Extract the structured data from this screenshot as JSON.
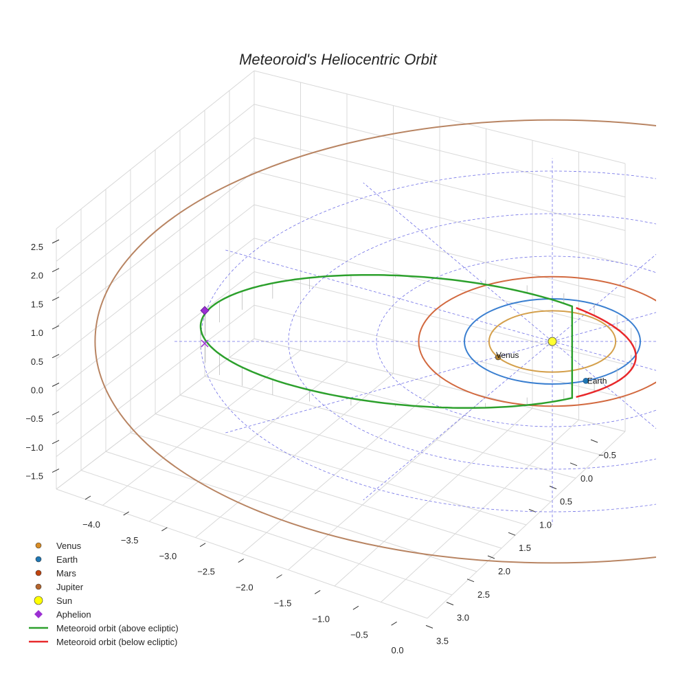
{
  "chart_data": {
    "type": "3d-orbit",
    "title": "Meteoroid's Heliocentric Orbit",
    "x_ticks": [
      "−4.0",
      "−3.5",
      "−3.0",
      "−2.5",
      "−2.0",
      "−1.5",
      "−1.0",
      "−0.5",
      "0.0"
    ],
    "y_ticks": [
      "−0.5",
      "0.0",
      "0.5",
      "1.0",
      "1.5",
      "2.0",
      "2.5",
      "3.0",
      "3.5"
    ],
    "z_ticks": [
      "2.5",
      "2.0",
      "1.5",
      "1.0",
      "0.5",
      "0.0",
      "−0.5",
      "−1.0",
      "−1.5"
    ],
    "xlim": [
      -4.2,
      0.2
    ],
    "ylim": [
      -0.8,
      3.7
    ],
    "zlim": [
      -1.9,
      2.7
    ],
    "grid": true,
    "planets": [
      {
        "name": "Venus",
        "orbit_radius_au": 0.72,
        "color": "#d4a04c",
        "label": "Venus"
      },
      {
        "name": "Earth",
        "orbit_radius_au": 1.0,
        "color": "#3a7fd0",
        "label": "Earth"
      },
      {
        "name": "Mars",
        "orbit_radius_au": 1.52,
        "color": "#d2693f",
        "label": ""
      },
      {
        "name": "Jupiter",
        "orbit_radius_au": 5.2,
        "color": "#b88462",
        "label": ""
      }
    ],
    "sun": {
      "name": "Sun",
      "color": "#ffff33"
    },
    "meteoroid_orbit": {
      "perihelion_au": 0.95,
      "aphelion_au": 4.0,
      "above_ecliptic_color": "#2ca02c",
      "below_ecliptic_color": "#e8282a"
    },
    "aphelion_marker_color": "#9b2fd2",
    "reference_grid_color": "#6e6ee6"
  },
  "legend": [
    {
      "label": "Venus",
      "marker": "circle",
      "color": "#d98d26"
    },
    {
      "label": "Earth",
      "marker": "circle",
      "color": "#1f77b4"
    },
    {
      "label": "Mars",
      "marker": "circle",
      "color": "#c1440e"
    },
    {
      "label": "Jupiter",
      "marker": "circle",
      "color": "#b5652d"
    },
    {
      "label": "Sun",
      "marker": "circle-large",
      "color": "#ffff00"
    },
    {
      "label": "Aphelion",
      "marker": "diamond",
      "color": "#9b2fd2"
    },
    {
      "label": "Meteoroid orbit (above ecliptic)",
      "marker": "line",
      "color": "#2ca02c"
    },
    {
      "label": "Meteoroid orbit (below ecliptic)",
      "marker": "line",
      "color": "#e8282a"
    }
  ]
}
